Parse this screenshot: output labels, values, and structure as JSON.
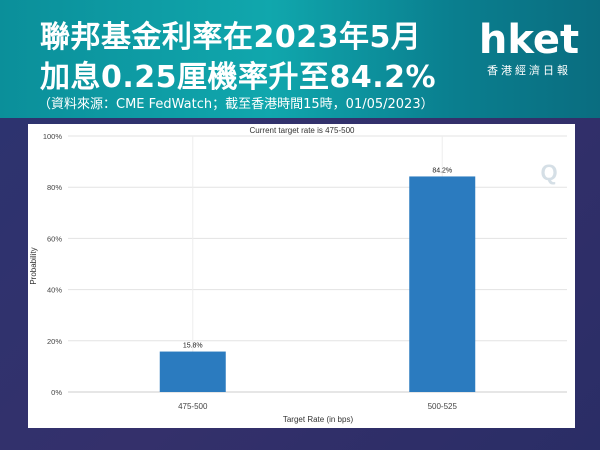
{
  "header": {
    "title_line1": "聯邦基金利率在2023年5月",
    "title_line2": "加息0.25厘機率升至84.2%",
    "source": "（資料來源：CME FedWatch；截至香港時間15時，01/05/2023）",
    "logo_mark": "hket",
    "logo_sub": "香港經濟日報"
  },
  "colors": {
    "bar": "#2b7bbf",
    "header_teal": "#10a7ad",
    "background": "#2f3370"
  },
  "chart_data": {
    "type": "bar",
    "title": "Current target rate is 475-500",
    "xlabel": "Target Rate (in bps)",
    "ylabel": "Probability",
    "categories": [
      "475-500",
      "500-525"
    ],
    "values": [
      15.8,
      84.2
    ],
    "value_labels": [
      "15.8%",
      "84.2%"
    ],
    "y_ticks": [
      "0%",
      "20%",
      "40%",
      "60%",
      "80%",
      "100%"
    ],
    "ylim": [
      0,
      100
    ],
    "grid": true
  }
}
